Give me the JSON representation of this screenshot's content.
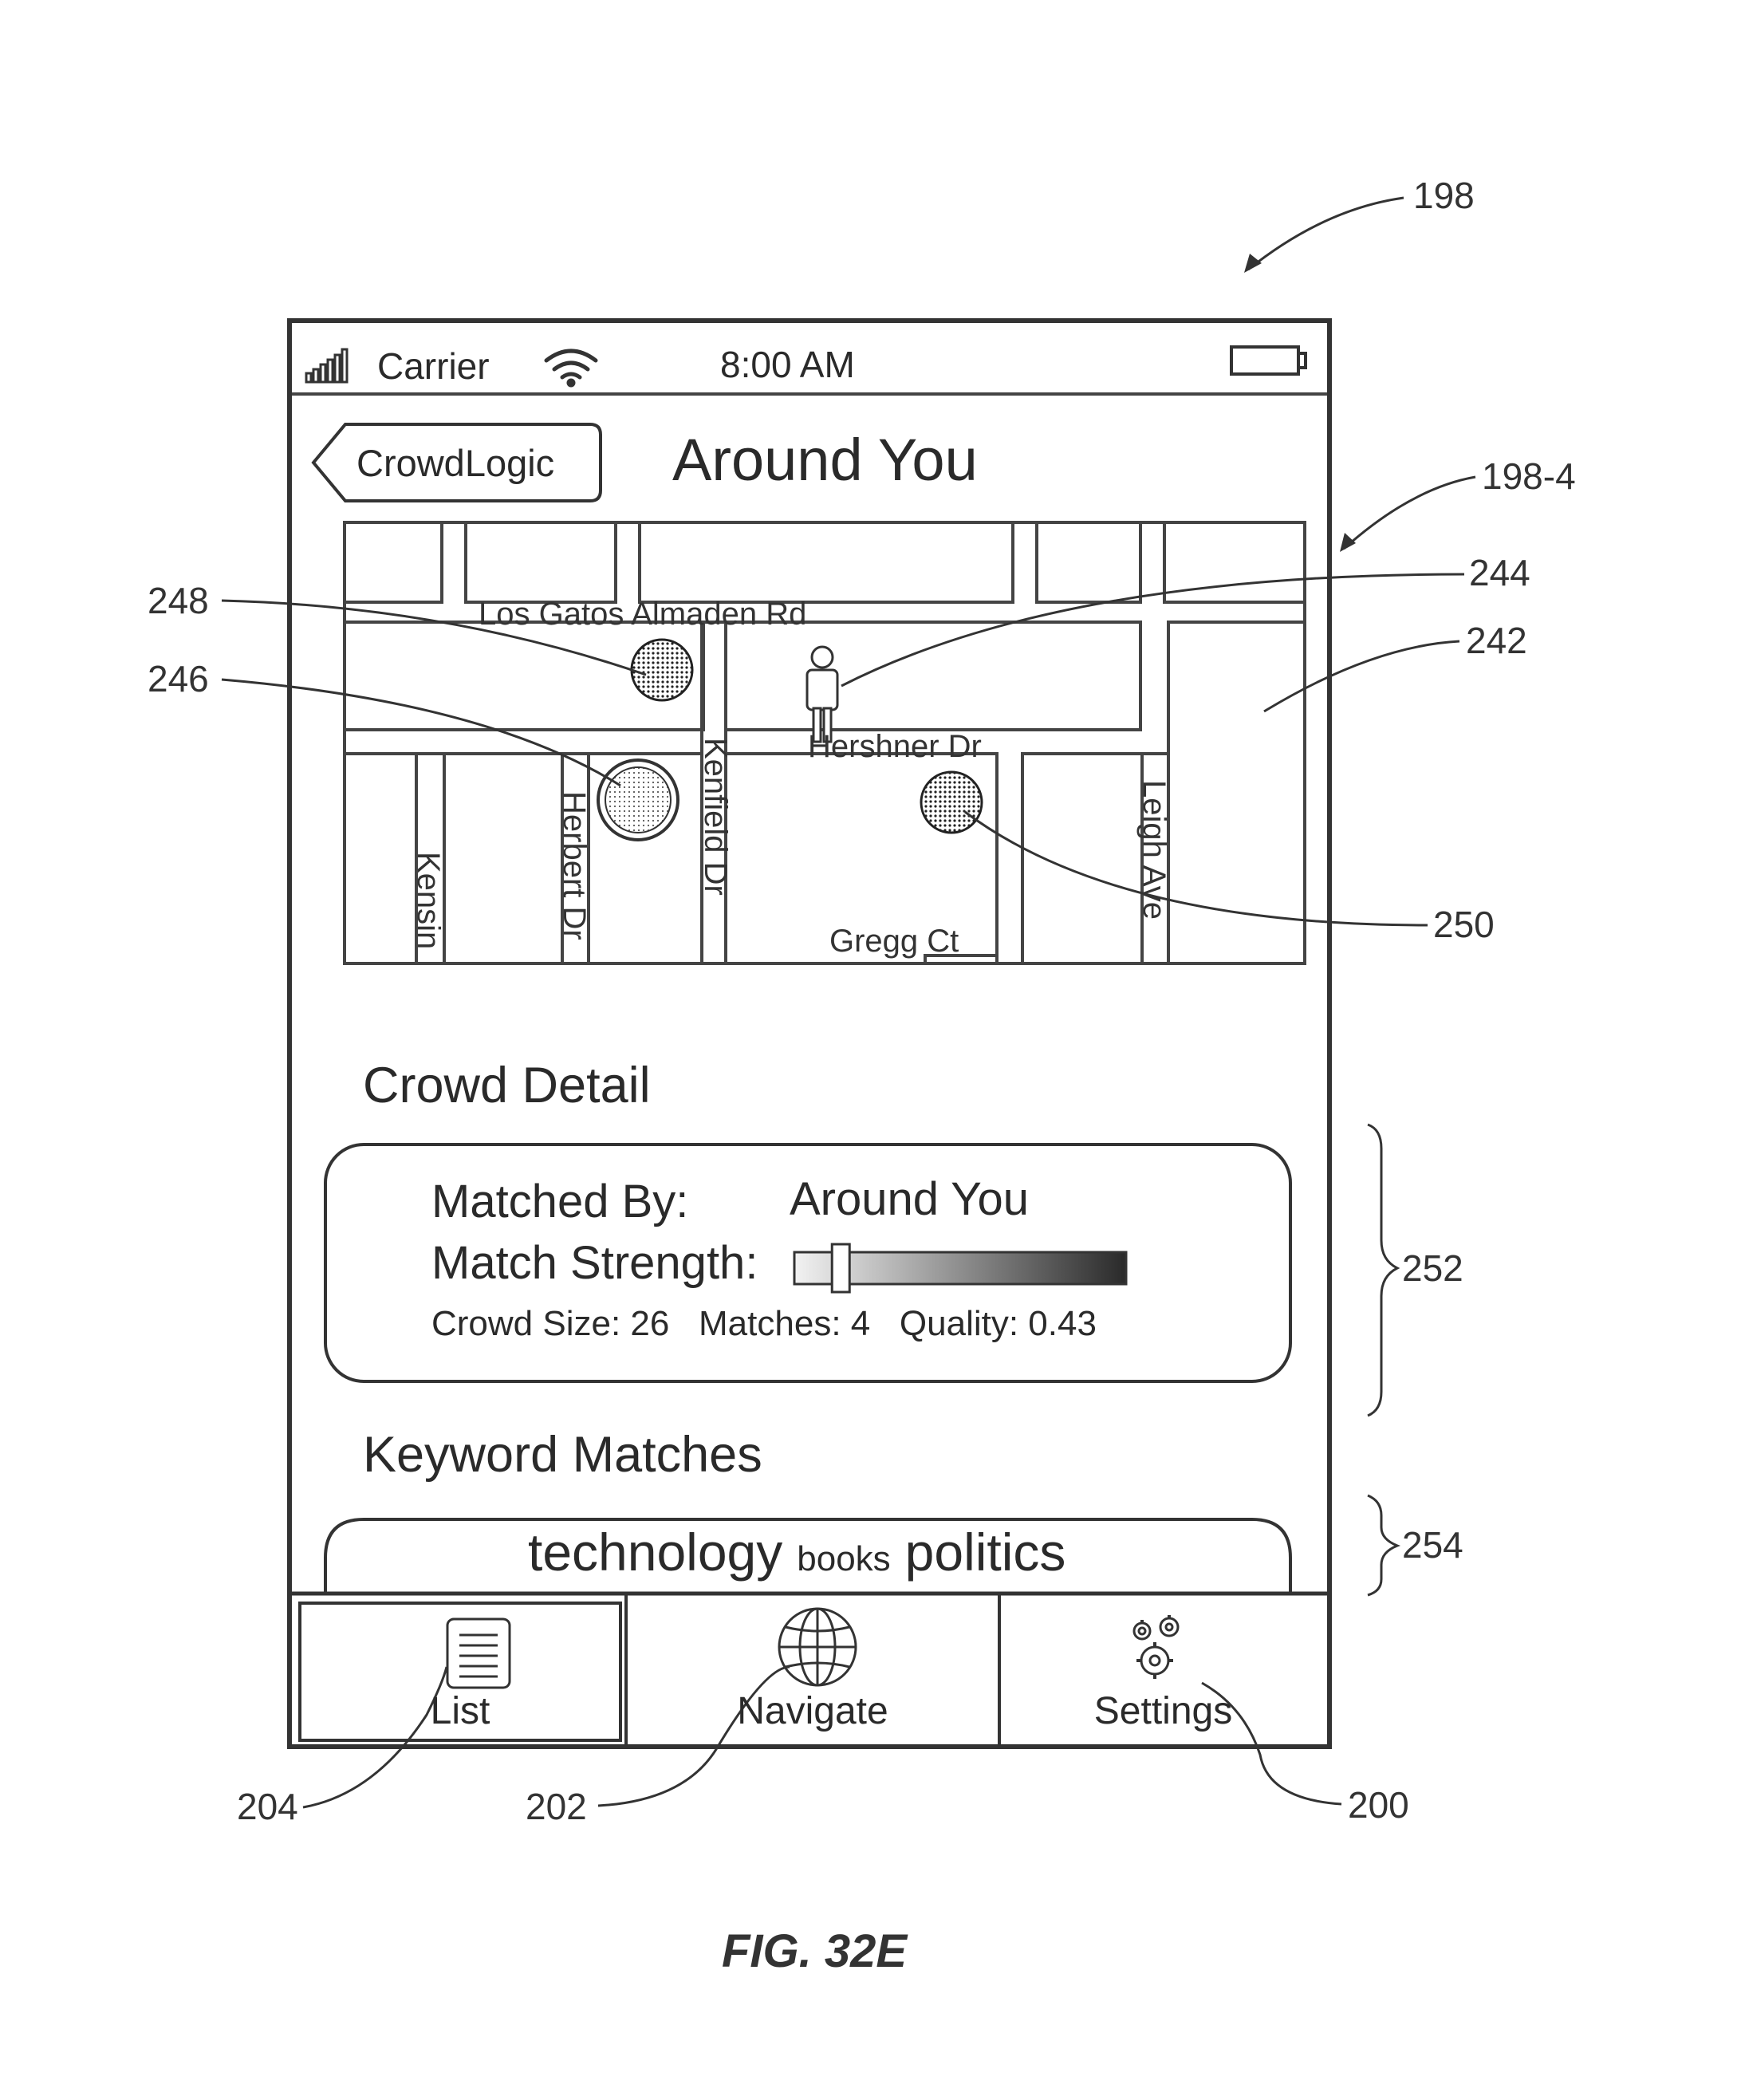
{
  "status_bar": {
    "carrier": "Carrier",
    "time": "8:00 AM"
  },
  "nav_bar": {
    "back_label": "CrowdLogic",
    "title": "Around You"
  },
  "map": {
    "streets": {
      "los_gatos": "Los Gatos Almaden Rd",
      "hershner": "Hershner Dr",
      "kenfield": "Kenfield Dr",
      "herbert": "Herbert Dr",
      "kensin": "Kensin",
      "leigh": "Leigh Ave",
      "gregg": "Gregg Ct"
    }
  },
  "crowd_detail": {
    "heading": "Crowd Detail",
    "matched_by_label": "Matched By:",
    "matched_by_value": "Around You",
    "match_strength_label": "Match Strength:",
    "match_strength_level": 0.14,
    "stats_line": "Crowd Size: 26   Matches: 4   Quality: 0.43"
  },
  "keyword_matches": {
    "heading": "Keyword Matches",
    "keywords": [
      "technology",
      "books",
      "politics"
    ]
  },
  "tab_bar": {
    "tabs": [
      {
        "label": "List",
        "icon": "list-icon"
      },
      {
        "label": "Navigate",
        "icon": "globe-icon"
      },
      {
        "label": "Settings",
        "icon": "gears-icon"
      }
    ]
  },
  "reference_numerals": {
    "r198": "198",
    "r198_4": "198-4",
    "r244": "244",
    "r242": "242",
    "r248": "248",
    "r246": "246",
    "r250": "250",
    "r252": "252",
    "r254": "254",
    "r204": "204",
    "r202": "202",
    "r200": "200"
  },
  "figure_caption": "FIG. 32E"
}
